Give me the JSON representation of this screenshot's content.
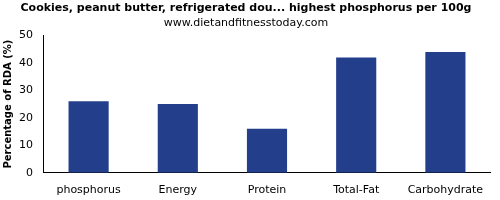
{
  "chart_data": {
    "type": "bar",
    "title": "Cookies, peanut butter, refrigerated dou... highest phosphorus per 100g",
    "subtitle": "www.dietandfitnesstoday.com",
    "y_label": "Percentage of RDA (%)",
    "categories": [
      "phosphorus",
      "Energy",
      "Protein",
      "Total-Fat",
      "Carbohydrate"
    ],
    "values": [
      26,
      25,
      16,
      42,
      44
    ],
    "color": "#233f8c",
    "ylim": [
      0,
      50
    ],
    "yticks": [
      0,
      10,
      20,
      30,
      40,
      50
    ],
    "grid": false
  }
}
